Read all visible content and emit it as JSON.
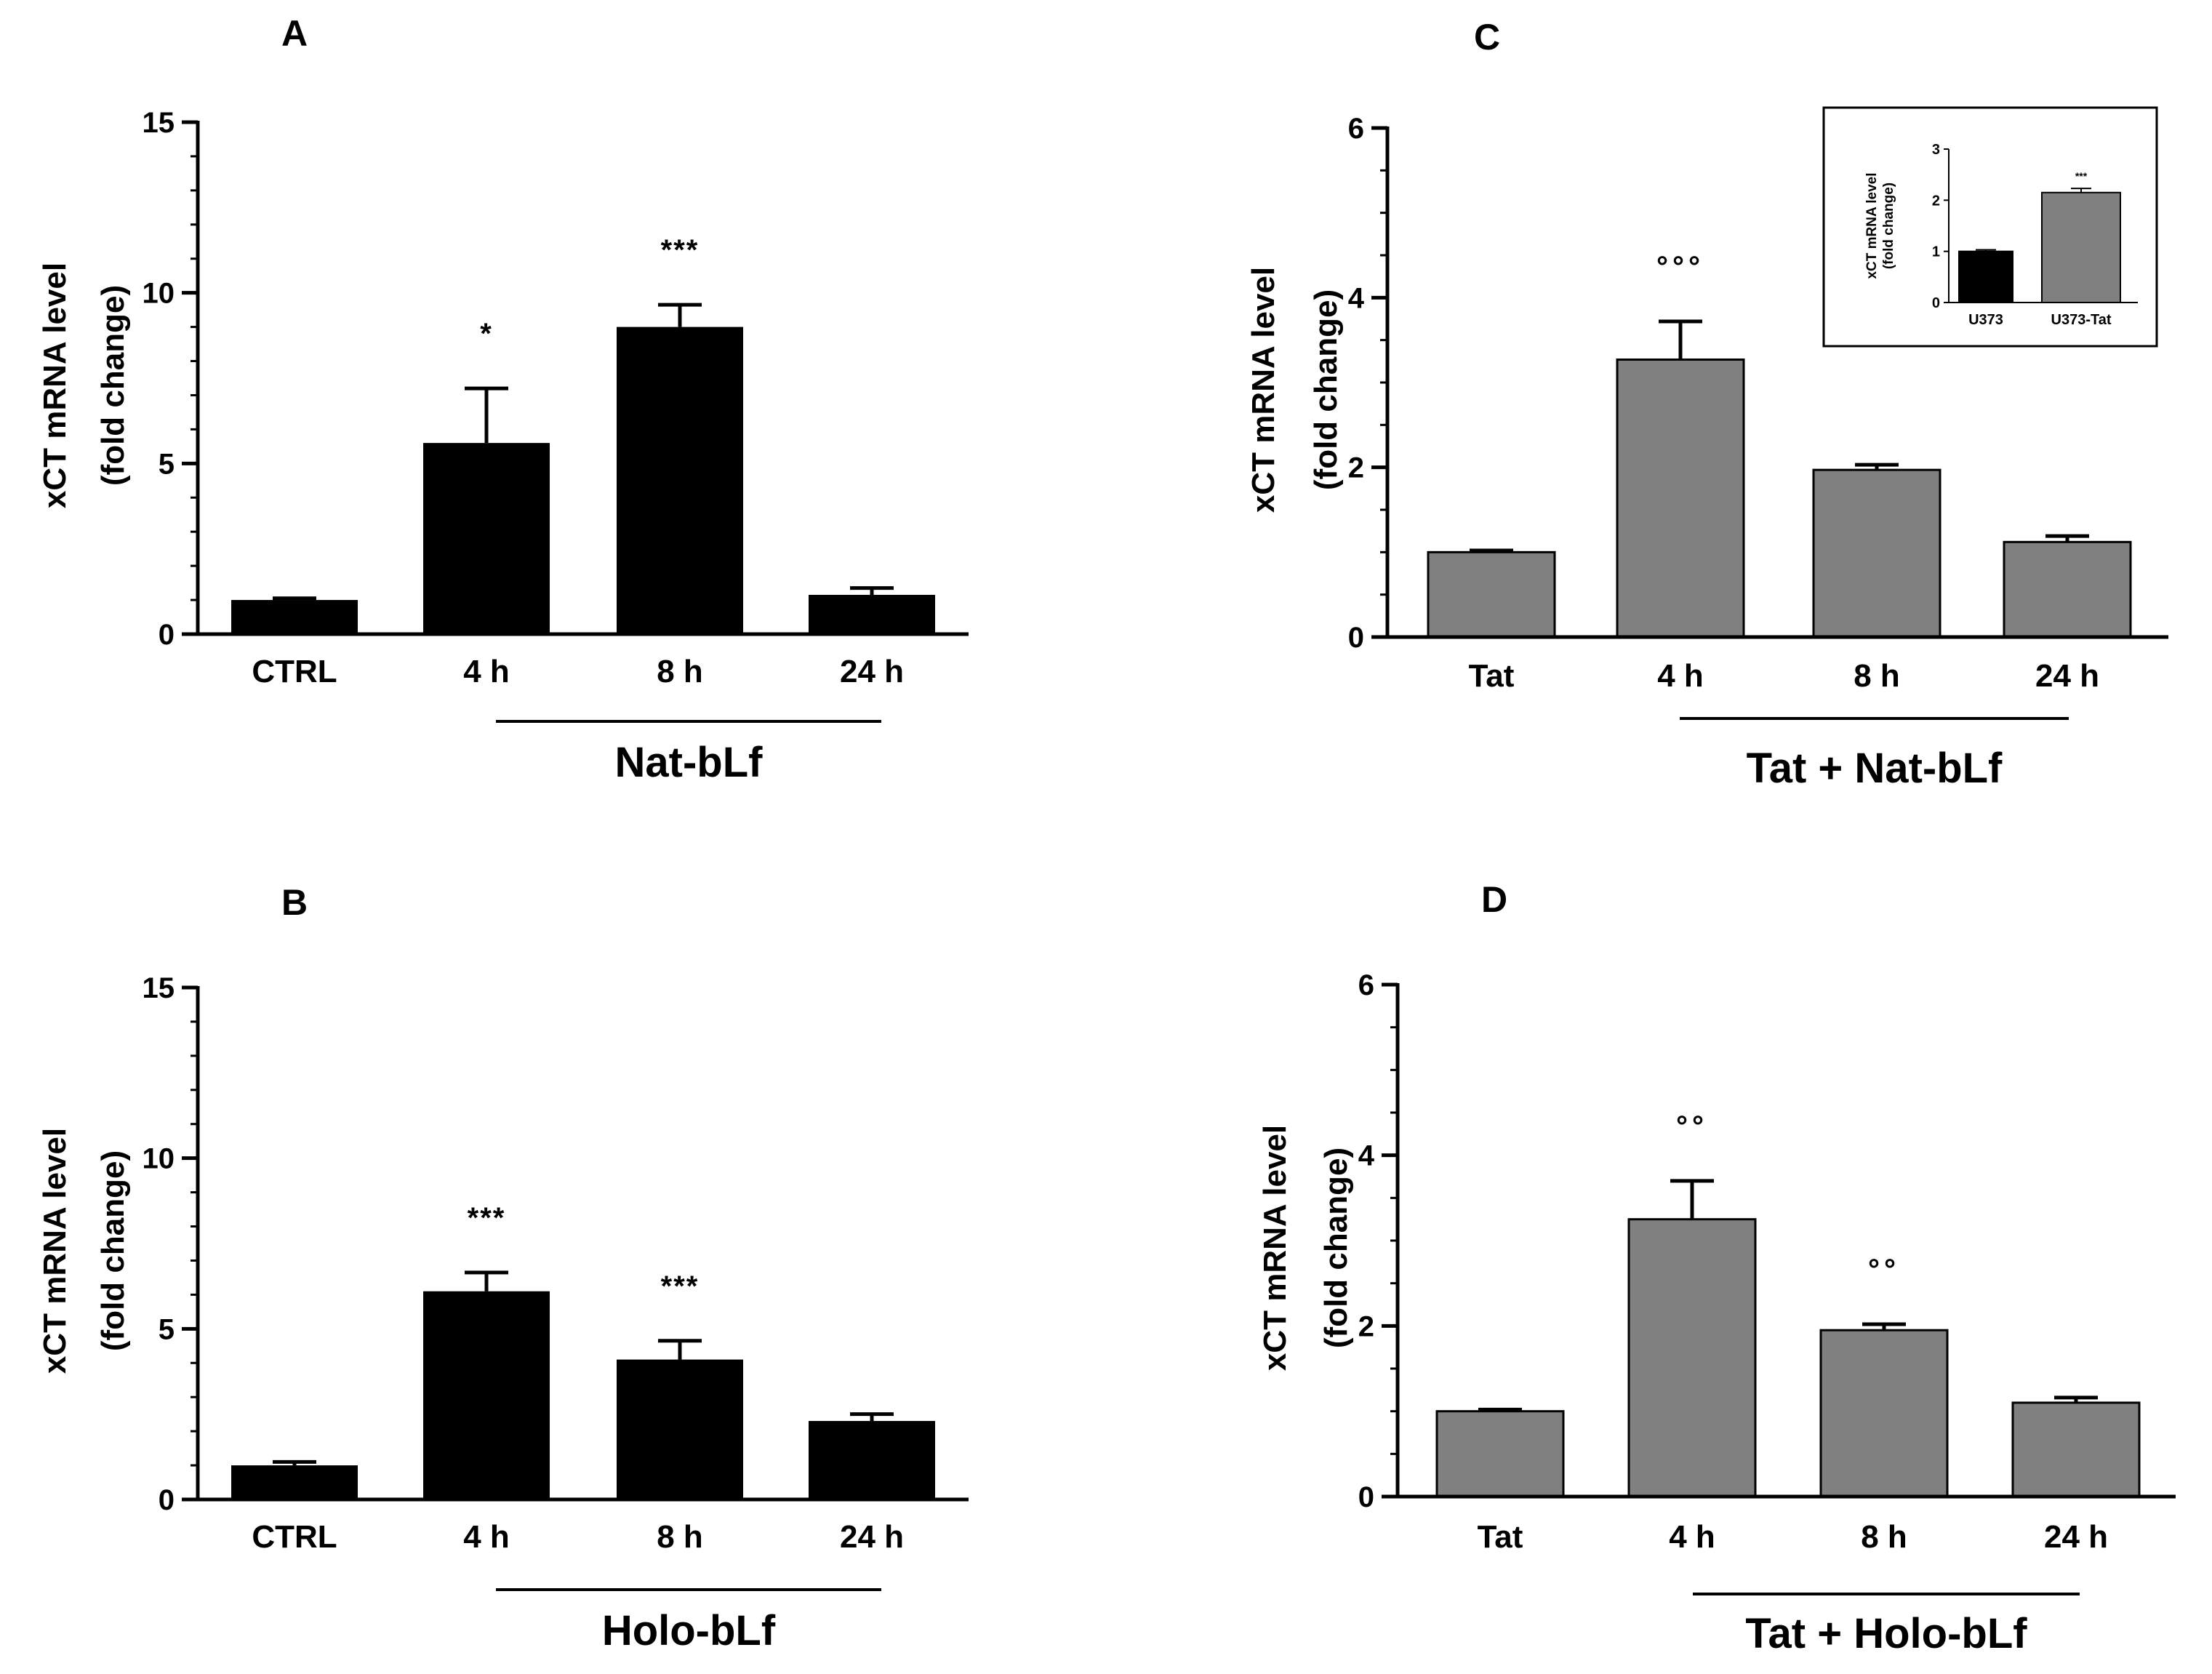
{
  "chart_data": [
    {
      "panel": "A",
      "type": "bar",
      "ylabel_line1": "xCT mRNA level",
      "ylabel_line2": "(fold change)",
      "ylim": [
        0,
        15
      ],
      "yticks": [
        0,
        5,
        10,
        15
      ],
      "minor_step": 1,
      "categories": [
        "CTRL",
        "4 h",
        "8 h",
        "24 h"
      ],
      "values": [
        1.0,
        5.6,
        9.0,
        1.15
      ],
      "errors": [
        0.05,
        1.6,
        0.65,
        0.2
      ],
      "significance": [
        "",
        "*",
        "***",
        ""
      ],
      "bar_color": "#000000",
      "group_label": "Nat-bLf",
      "group_span": [
        1,
        3
      ]
    },
    {
      "panel": "B",
      "type": "bar",
      "ylabel_line1": "xCT mRNA level",
      "ylabel_line2": "(fold change)",
      "ylim": [
        0,
        15
      ],
      "yticks": [
        0,
        5,
        10,
        15
      ],
      "minor_step": 1,
      "categories": [
        "CTRL",
        "4 h",
        "8 h",
        "24 h"
      ],
      "values": [
        1.0,
        6.1,
        4.1,
        2.3
      ],
      "errors": [
        0.1,
        0.55,
        0.55,
        0.2
      ],
      "significance": [
        "",
        "***",
        "***",
        ""
      ],
      "bar_color": "#000000",
      "group_label": "Holo-bLf",
      "group_span": [
        1,
        3
      ]
    },
    {
      "panel": "C",
      "type": "bar",
      "ylabel_line1": "xCT mRNA level",
      "ylabel_line2": "(fold change)",
      "ylim": [
        0,
        6
      ],
      "yticks": [
        0,
        2,
        4,
        6
      ],
      "minor_step": 0.5,
      "categories": [
        "Tat",
        "4 h",
        "8 h",
        "24 h"
      ],
      "values": [
        1.0,
        3.27,
        1.97,
        1.12
      ],
      "errors": [
        0.02,
        0.45,
        0.06,
        0.07
      ],
      "significance": [
        "",
        "°°°",
        "",
        ""
      ],
      "bar_color": "#808080",
      "group_label": "Tat + Nat-bLf",
      "group_span": [
        1,
        3
      ],
      "inset": {
        "type": "bar",
        "ylabel_line1": "xCT mRNA level",
        "ylabel_line2": "(fold change)",
        "ylim": [
          0,
          3
        ],
        "yticks": [
          0,
          1,
          2,
          3
        ],
        "categories": [
          "U373",
          "U373-Tat"
        ],
        "values": [
          1.0,
          2.15
        ],
        "errors": [
          0.03,
          0.08
        ],
        "significance": [
          "",
          "***"
        ],
        "bar_colors": [
          "#000000",
          "#808080"
        ]
      }
    },
    {
      "panel": "D",
      "type": "bar",
      "ylabel_line1": "xCT mRNA level",
      "ylabel_line2": "(fold change)",
      "ylim": [
        0,
        6
      ],
      "yticks": [
        0,
        2,
        4,
        6
      ],
      "minor_step": 0.5,
      "categories": [
        "Tat",
        "4 h",
        "8 h",
        "24 h"
      ],
      "values": [
        1.0,
        3.25,
        1.95,
        1.1
      ],
      "errors": [
        0.02,
        0.45,
        0.07,
        0.06
      ],
      "significance": [
        "",
        "°°",
        "°°",
        ""
      ],
      "bar_color": "#808080",
      "group_label": "Tat + Holo-bLf",
      "group_span": [
        1,
        3
      ]
    }
  ]
}
